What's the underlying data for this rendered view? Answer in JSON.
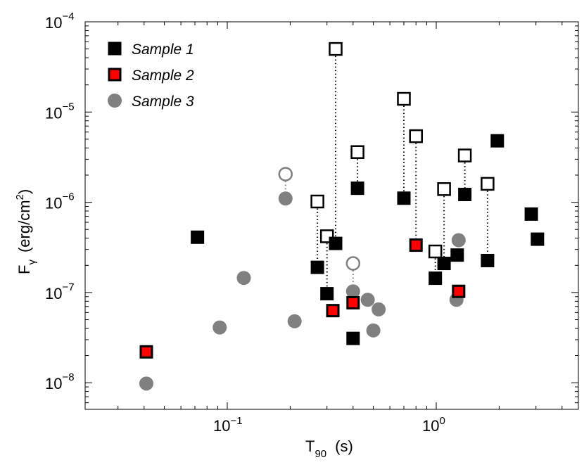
{
  "chart_data": {
    "type": "scatter",
    "xlabel_main": "T",
    "xlabel_sub": "90",
    "xlabel_unit": "(s)",
    "ylabel_main": "F",
    "ylabel_sub": "γ",
    "ylabel_unit": "(erg/cm",
    "ylabel_unit_sup": "2",
    "ylabel_unit_close": ")",
    "xscale": "log",
    "yscale": "log",
    "xlim": [
      0.021,
      4.8
    ],
    "ylim": [
      5e-09,
      0.0001
    ],
    "x_ticks": [
      {
        "value": 0.1,
        "base": "10",
        "exp": "−1"
      },
      {
        "value": 1,
        "base": "10",
        "exp": "0"
      }
    ],
    "y_ticks": [
      {
        "value": 1e-08,
        "base": "10",
        "exp": "−8"
      },
      {
        "value": 1e-07,
        "base": "10",
        "exp": "−7"
      },
      {
        "value": 1e-06,
        "base": "10",
        "exp": "−6"
      },
      {
        "value": 1e-05,
        "base": "10",
        "exp": "−5"
      },
      {
        "value": 0.0001,
        "base": "10",
        "exp": "−4"
      }
    ],
    "grid": false,
    "legend_position": "top-left",
    "legend": [
      {
        "label": "Sample 1",
        "marker": "square",
        "color": "#000000"
      },
      {
        "label": "Sample 2",
        "marker": "square",
        "color": "#ff0000"
      },
      {
        "label": "Sample 3",
        "marker": "circle",
        "color": "#808080"
      }
    ],
    "series": [
      {
        "name": "Sample 1",
        "marker": "square",
        "fill": "#000000",
        "stroke": "#000000",
        "points": [
          [
            0.072,
            4.1e-07
          ],
          [
            0.27,
            1.9e-07
          ],
          [
            0.3,
            9.7e-08
          ],
          [
            0.33,
            3.5e-07
          ],
          [
            0.4,
            3.1e-08
          ],
          [
            0.42,
            1.43e-06
          ],
          [
            0.7,
            1.11e-06
          ],
          [
            0.99,
            1.44e-07
          ],
          [
            1.09,
            2.1e-07
          ],
          [
            1.26,
            2.6e-07
          ],
          [
            1.37,
            1.22e-06
          ],
          [
            1.76,
            2.26e-07
          ],
          [
            1.96,
            4.8e-06
          ],
          [
            2.85,
            7.4e-07
          ],
          [
            3.05,
            3.9e-07
          ]
        ]
      },
      {
        "name": "Sample 2",
        "marker": "square",
        "fill": "#ff0000",
        "stroke": "#000000",
        "points": [
          [
            0.041,
            2.2e-08
          ],
          [
            0.32,
            6.3e-08
          ],
          [
            0.4,
            7.7e-08
          ],
          [
            0.8,
            3.35e-07
          ],
          [
            1.28,
            1.03e-07
          ]
        ]
      },
      {
        "name": "Sample 3",
        "marker": "circle",
        "fill": "#808080",
        "stroke": "#808080",
        "points": [
          [
            0.041,
            9.8e-09
          ],
          [
            0.092,
            4.1e-08
          ],
          [
            0.12,
            1.45e-07
          ],
          [
            0.19,
            1.1e-06
          ],
          [
            0.21,
            4.8e-08
          ],
          [
            0.4,
            1.03e-07
          ],
          [
            0.47,
            8.3e-08
          ],
          [
            0.5,
            3.8e-08
          ],
          [
            0.53,
            6.5e-08
          ],
          [
            1.25,
            8.3e-08
          ],
          [
            1.28,
            3.8e-07
          ]
        ]
      }
    ],
    "upper_values": [
      {
        "sample": "Sample 1",
        "marker": "open-square",
        "x": 0.27,
        "y": 1.02e-06,
        "from": 1.9e-07
      },
      {
        "sample": "Sample 1",
        "marker": "open-square",
        "x": 0.3,
        "y": 4.2e-07,
        "from": 9.7e-08
      },
      {
        "sample": "Sample 1",
        "marker": "open-square",
        "x": 0.33,
        "y": 5e-05,
        "from": 3.5e-07
      },
      {
        "sample": "Sample 1",
        "marker": "open-square",
        "x": 0.42,
        "y": 3.6e-06,
        "from": 1.43e-06
      },
      {
        "sample": "Sample 1",
        "marker": "open-square",
        "x": 0.7,
        "y": 1.4e-05,
        "from": 1.11e-06
      },
      {
        "sample": "Sample 2",
        "marker": "open-square",
        "x": 0.8,
        "y": 5.4e-06,
        "from": 3.35e-07
      },
      {
        "sample": "Sample 1",
        "marker": "open-square",
        "x": 0.99,
        "y": 2.85e-07,
        "from": 1.44e-07
      },
      {
        "sample": "Sample 1",
        "marker": "open-square",
        "x": 1.09,
        "y": 1.4e-06,
        "from": 2.1e-07
      },
      {
        "sample": "Sample 1",
        "marker": "open-square",
        "x": 1.37,
        "y": 3.3e-06,
        "from": 1.22e-06
      },
      {
        "sample": "Sample 1",
        "marker": "open-square",
        "x": 1.76,
        "y": 1.6e-06,
        "from": 2.26e-07
      },
      {
        "sample": "Sample 3",
        "marker": "open-circle",
        "x": 0.19,
        "y": 2.05e-06,
        "from": 1.1e-06
      },
      {
        "sample": "Sample 3",
        "marker": "open-circle",
        "x": 0.4,
        "y": 2.1e-07,
        "from": 1.03e-07
      }
    ]
  }
}
